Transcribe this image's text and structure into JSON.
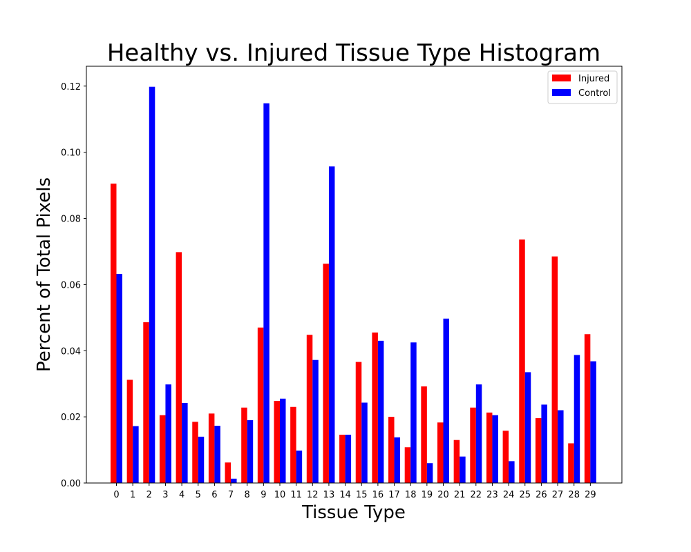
{
  "chart_data": {
    "type": "bar",
    "title": "Healthy vs. Injured Tissue Type Histogram",
    "xlabel": "Tissue Type",
    "ylabel": "Percent of Total Pixels",
    "categories": [
      "0",
      "1",
      "2",
      "3",
      "4",
      "5",
      "6",
      "7",
      "8",
      "9",
      "10",
      "11",
      "12",
      "13",
      "14",
      "15",
      "16",
      "17",
      "18",
      "19",
      "20",
      "21",
      "22",
      "23",
      "24",
      "25",
      "26",
      "27",
      "28",
      "29"
    ],
    "ylim": [
      0,
      0.126
    ],
    "yticks": [
      "0.00",
      "0.02",
      "0.04",
      "0.06",
      "0.08",
      "0.10",
      "0.12"
    ],
    "legend_position": "top-right",
    "grid": false,
    "series": [
      {
        "name": "Injured",
        "color": "#ff0000",
        "values": [
          0.0905,
          0.0312,
          0.0486,
          0.0205,
          0.0698,
          0.0185,
          0.021,
          0.0062,
          0.0228,
          0.047,
          0.0248,
          0.023,
          0.0448,
          0.0663,
          0.0146,
          0.0366,
          0.0455,
          0.02,
          0.0108,
          0.0292,
          0.0183,
          0.013,
          0.0228,
          0.0213,
          0.0158,
          0.0736,
          0.0196,
          0.0685,
          0.012,
          0.045
        ]
      },
      {
        "name": "Control",
        "color": "#0000ff",
        "values": [
          0.0632,
          0.0172,
          0.1198,
          0.0298,
          0.0242,
          0.014,
          0.0173,
          0.0013,
          0.019,
          0.1148,
          0.0255,
          0.0098,
          0.0372,
          0.0957,
          0.0146,
          0.0243,
          0.043,
          0.0138,
          0.0425,
          0.006,
          0.0497,
          0.008,
          0.0298,
          0.0205,
          0.0066,
          0.0335,
          0.0237,
          0.022,
          0.0387,
          0.0368
        ]
      }
    ]
  }
}
